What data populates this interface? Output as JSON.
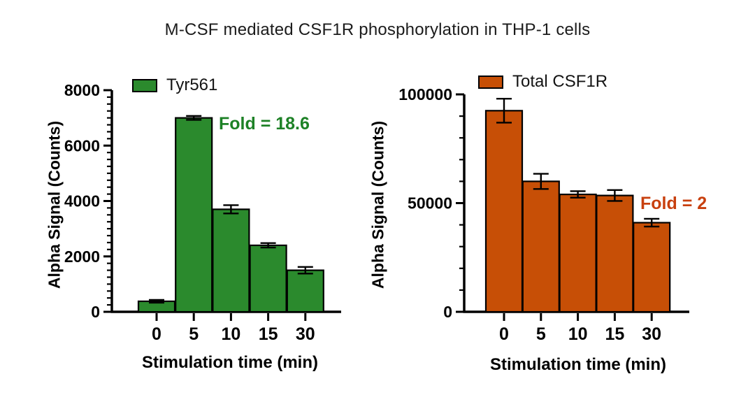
{
  "title": "M-CSF mediated CSF1R phosphorylation in THP-1 cells",
  "chart_data": [
    {
      "type": "bar",
      "legend": "Tyr561",
      "bar_color": "#2b8a2d",
      "annotation": {
        "text": "Fold = 18.6",
        "color": "#1d8126"
      },
      "categories": [
        "0",
        "5",
        "10",
        "15",
        "30"
      ],
      "values": [
        380,
        7000,
        3700,
        2400,
        1500
      ],
      "errors": [
        50,
        70,
        150,
        80,
        120
      ],
      "xlabel": "Stimulation time (min)",
      "ylabel": "Alpha Signal (Counts)",
      "ylim": [
        0,
        8000
      ],
      "ytick_values": [
        0,
        2000,
        4000,
        6000,
        8000
      ],
      "ytick_labels": [
        "0",
        "2000",
        "4000",
        "6000",
        "8000"
      ],
      "minor_tick_step": 250,
      "grid": false,
      "legend_position": "inside-top-left"
    },
    {
      "type": "bar",
      "legend": "Total CSF1R",
      "bar_color": "#c74f06",
      "annotation": {
        "text": "Fold = 2",
        "color": "#c8400f"
      },
      "categories": [
        "0",
        "5",
        "10",
        "15",
        "30"
      ],
      "values": [
        92500,
        60000,
        54000,
        53500,
        41000
      ],
      "errors": [
        5500,
        3500,
        1500,
        2500,
        1800
      ],
      "xlabel": "Stimulation time (min)",
      "ylabel": "Alpha Signal (Counts)",
      "ylim": [
        0,
        100000
      ],
      "ytick_values": [
        0,
        50000,
        100000
      ],
      "ytick_labels": [
        "0",
        "50000",
        "100000"
      ],
      "minor_tick_step": 10000,
      "grid": false,
      "legend_position": "inside-top-left"
    }
  ]
}
